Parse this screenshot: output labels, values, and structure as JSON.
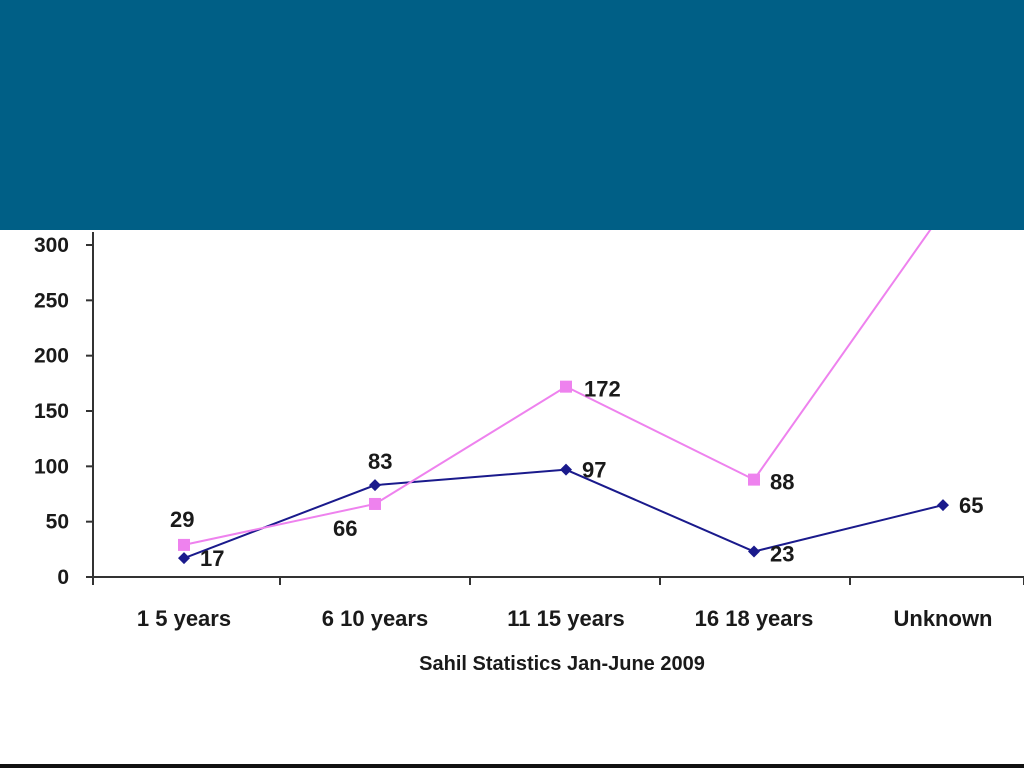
{
  "banner": {
    "color": "#005f86"
  },
  "chart_data": {
    "type": "line",
    "title": "",
    "xlabel": "Sahil Statistics Jan-June 2009",
    "ylabel": "",
    "categories": [
      "1 5 years",
      "6 10 years",
      "11 15 years",
      "16 18 years",
      "Unknown"
    ],
    "ylim": [
      0,
      300
    ],
    "yticks": [
      0,
      50,
      100,
      150,
      200,
      250,
      300
    ],
    "grid": false,
    "legend": "none",
    "series": [
      {
        "color": "#1a1a8c",
        "marker": "diamond",
        "values": [
          17,
          83,
          97,
          23,
          65
        ]
      },
      {
        "color": "#ee82ee",
        "marker": "square",
        "values": [
          29,
          66,
          172,
          88,
          330
        ]
      }
    ]
  }
}
